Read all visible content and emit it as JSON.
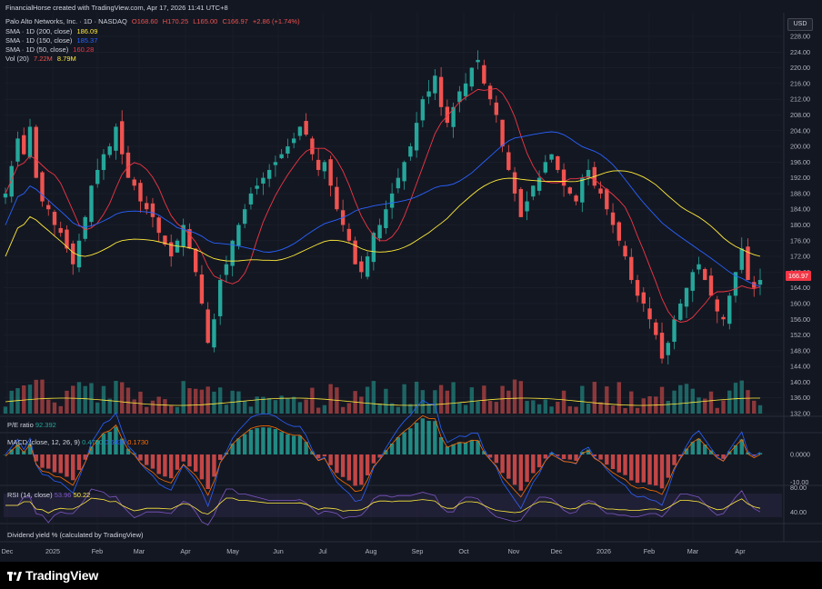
{
  "header": {
    "credit": "FinancialHorse created with TradingView.com, Apr 17, 2026 11:41 UTC+8",
    "symbol": "Palo Alto Networks, Inc. · 1D · NASDAQ",
    "ohlc": {
      "o": "O168.60",
      "h": "H170.25",
      "l": "L165.00",
      "c": "C166.97",
      "chg": "+2.86 (+1.74%)"
    },
    "sma200": {
      "label": "SMA · 1D (200, close)",
      "value": "186.09",
      "color": "#ffeb3b"
    },
    "sma150": {
      "label": "SMA · 1D (150, close)",
      "value": "185.37",
      "color": "#2962ff"
    },
    "sma50": {
      "label": "SMA · 1D (50, close)",
      "value": "160.28",
      "color": "#f23645"
    },
    "vol": {
      "label": "Vol (20)",
      "v1": "7.22M",
      "v2": "8.79M"
    }
  },
  "currency": "USD",
  "last_price": "166.97",
  "pe": {
    "label": "P/E ratio",
    "value": "92.392"
  },
  "macd": {
    "label": "MACD (close, 12, 26, 9)",
    "v1": "0.4700",
    "v2": "0.6430",
    "v3": "0.1730"
  },
  "rsi": {
    "label": "RSI (14, close)",
    "v1": "53.96",
    "v2": "50.22"
  },
  "dividend": {
    "label": "Dividend yield % (calculated by TradingView)"
  },
  "brand": "TradingView",
  "colors": {
    "up": "#26a69a",
    "down": "#ef5350",
    "bg": "#131722",
    "grid": "#1e222d",
    "sma200": "#ffeb3b",
    "sma150": "#2962ff",
    "sma50": "#f23645",
    "macd": "#2962ff",
    "signal": "#ff6d00",
    "rsi": "#7e57c2",
    "rsima": "#ffeb3b"
  },
  "chart_data": {
    "type": "candlestick",
    "price_axis": {
      "min": 132,
      "max": 228,
      "ticks": [
        "228.00",
        "224.00",
        "220.00",
        "216.00",
        "212.00",
        "208.00",
        "204.00",
        "200.00",
        "196.00",
        "192.00",
        "188.00",
        "184.00",
        "180.00",
        "176.00",
        "172.00",
        "168.00",
        "164.00",
        "160.00",
        "156.00",
        "152.00",
        "148.00",
        "144.00",
        "140.00",
        "136.00",
        "132.00"
      ]
    },
    "macd_axis": {
      "ticks": [
        "0.0000",
        "-10.00"
      ]
    },
    "rsi_axis": {
      "ticks": [
        "80.00",
        "40.00"
      ]
    },
    "time_axis": [
      "Dec",
      "2025",
      "Feb",
      "Mar",
      "Apr",
      "May",
      "Jun",
      "Jul",
      "Aug",
      "Sep",
      "Oct",
      "Nov",
      "Dec",
      "2026",
      "Feb",
      "Mar",
      "Apr"
    ],
    "close_series": [
      188,
      195,
      202,
      198,
      205,
      192,
      186,
      184,
      180,
      178,
      174,
      170,
      176,
      182,
      190,
      194,
      198,
      200,
      205,
      198,
      192,
      190,
      186,
      184,
      182,
      178,
      175,
      172,
      176,
      180,
      174,
      168,
      160,
      150,
      156,
      166,
      170,
      176,
      180,
      184,
      188,
      190,
      192,
      194,
      196,
      198,
      200,
      202,
      205,
      203,
      198,
      194,
      196,
      190,
      184,
      180,
      176,
      170,
      168,
      172,
      178,
      180,
      184,
      188,
      192,
      196,
      200,
      206,
      212,
      214,
      218,
      210,
      206,
      210,
      214,
      216,
      220,
      222,
      216,
      212,
      208,
      200,
      194,
      188,
      182,
      186,
      190,
      192,
      196,
      198,
      194,
      190,
      188,
      186,
      192,
      194,
      190,
      188,
      184,
      180,
      176,
      172,
      166,
      162,
      160,
      156,
      152,
      146,
      150,
      156,
      160,
      164,
      168,
      170,
      166,
      162,
      158,
      156,
      162,
      168,
      174,
      166,
      164,
      166
    ]
  }
}
